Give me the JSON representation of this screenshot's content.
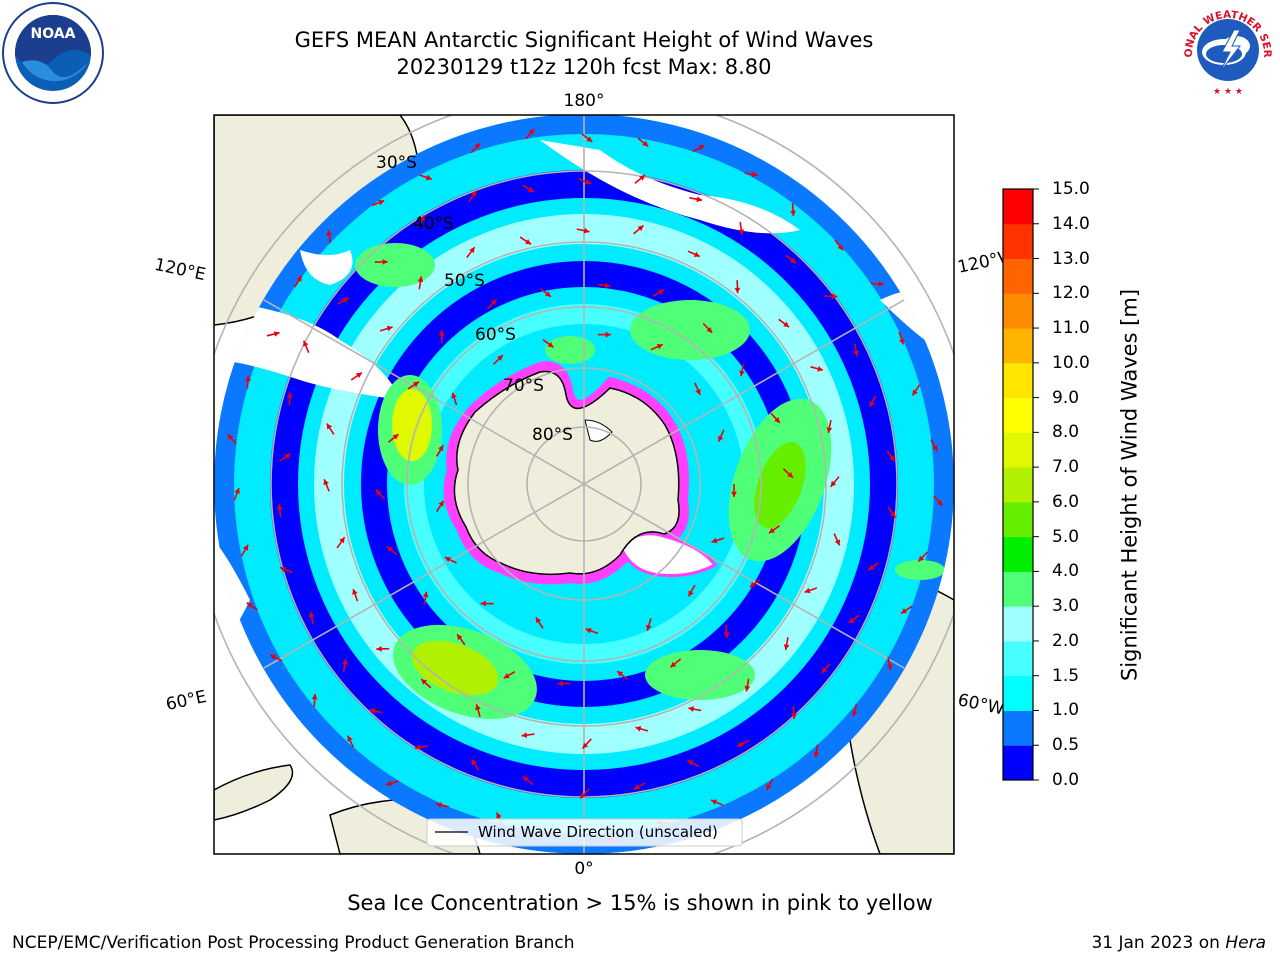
{
  "title_line1": "GEFS MEAN Antarctic Significant Height of Wind Waves",
  "title_line2": "20230129 t12z 120h fcst   Max: 8.80",
  "map": {
    "longitude_labels": {
      "top": "180°",
      "bottom": "0°",
      "left_upper": "120°E",
      "left_lower": "60°E",
      "right_upper": "120°W",
      "right_lower": "60°W"
    },
    "latitude_labels": [
      "30°S",
      "40°S",
      "50°S",
      "60°S",
      "70°S",
      "80°S"
    ],
    "legend_label": "Wind Wave Direction (unscaled)",
    "arrow_color": "#e8000b"
  },
  "colorbar": {
    "label": "Significant Height of Wind Waves [m]",
    "ticks": [
      "0.0",
      "0.5",
      "1.0",
      "1.5",
      "2.0",
      "3.0",
      "4.0",
      "5.0",
      "6.0",
      "7.0",
      "8.0",
      "9.0",
      "10.0",
      "11.0",
      "12.0",
      "13.0",
      "14.0",
      "15.0"
    ],
    "colors": [
      "#0000ff",
      "#0a78ff",
      "#00ffff",
      "#48ffff",
      "#a0ffff",
      "#50ff78",
      "#00ee00",
      "#66ee00",
      "#b0f000",
      "#e0f800",
      "#ffff00",
      "#ffe600",
      "#ffb400",
      "#ff8c00",
      "#ff6400",
      "#ff3200",
      "#ff0000"
    ]
  },
  "note": "Sea Ice Concentration > 15% is shown in pink to yellow",
  "footer_left": "NCEP/EMC/Verification Post Processing Product Generation Branch",
  "footer_right_date": "31 Jan 2023 on ",
  "footer_right_host": "Hera",
  "logos": {
    "left": "NOAA",
    "right_text": "NATIONAL WEATHER SERVICE"
  }
}
